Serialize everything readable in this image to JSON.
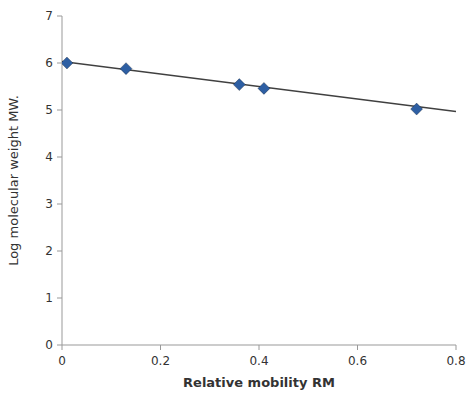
{
  "chart_data": {
    "type": "scatter",
    "xlabel": "Relative mobility RM",
    "ylabel": "Log molecular weight MW.",
    "series": [
      {
        "type": "scatter",
        "marker": "diamond",
        "color": "#2E5FA3",
        "x": [
          0.01,
          0.13,
          0.36,
          0.41,
          0.72
        ],
        "values": [
          6.0,
          5.88,
          5.54,
          5.46,
          5.02
        ]
      },
      {
        "type": "line",
        "line_style": "solid",
        "color": "#404040",
        "x": [
          0.0,
          0.8
        ],
        "values": [
          6.03,
          4.97
        ]
      }
    ],
    "xlim": [
      0,
      0.8
    ],
    "ylim": [
      0,
      7
    ],
    "xticks": [
      0,
      0.2,
      0.4,
      0.6,
      0.8
    ],
    "yticks": [
      0,
      1,
      2,
      3,
      4,
      5,
      6,
      7
    ],
    "grid": false
  }
}
